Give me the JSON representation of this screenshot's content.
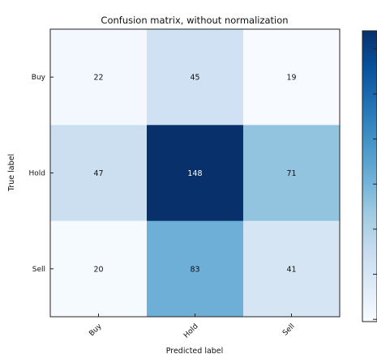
{
  "chart_data": {
    "type": "heatmap",
    "title": "Confusion matrix, without normalization",
    "xlabel": "Predicted label",
    "ylabel": "True label",
    "x_categories": [
      "Buy",
      "Hold",
      "Sell"
    ],
    "y_categories": [
      "Buy",
      "Hold",
      "Sell"
    ],
    "values": [
      [
        22,
        45,
        19
      ],
      [
        47,
        148,
        71
      ],
      [
        20,
        83,
        41
      ]
    ],
    "colormap": "Blues",
    "vmin": 19,
    "vmax": 148,
    "colorbar": true,
    "colors": {
      "low": "#f7fbff",
      "high": "#08306b"
    }
  }
}
